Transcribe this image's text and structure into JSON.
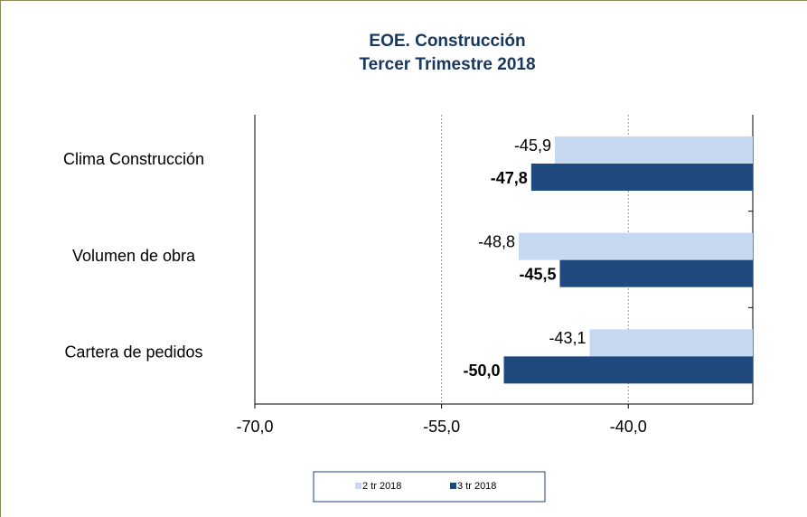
{
  "chart_data": {
    "type": "bar",
    "orientation": "horizontal",
    "title": "EOE. Construcción",
    "subtitle": "Tercer Trimestre 2018",
    "categories": [
      "Clima Construcción",
      "Volumen de obra",
      "Cartera de pedidos"
    ],
    "series": [
      {
        "name": "2 tr 2018",
        "color": "#c6d9f1",
        "values": [
          -45.9,
          -48.8,
          -43.1
        ],
        "value_labels": [
          "-45,9",
          "-48,8",
          "-43,1"
        ]
      },
      {
        "name": "3 tr 2018",
        "color": "#1f497d",
        "values": [
          -47.8,
          -45.5,
          -50.0
        ],
        "value_labels": [
          "-47,8",
          "-45,5",
          "-50,0"
        ]
      }
    ],
    "xlim": [
      -70,
      -30
    ],
    "xticks": [
      {
        "value": -70,
        "label": "-70,0"
      },
      {
        "value": -55,
        "label": "-55,0"
      },
      {
        "value": -40,
        "label": "-40,0"
      }
    ],
    "grid": true,
    "legend": "bottom"
  }
}
